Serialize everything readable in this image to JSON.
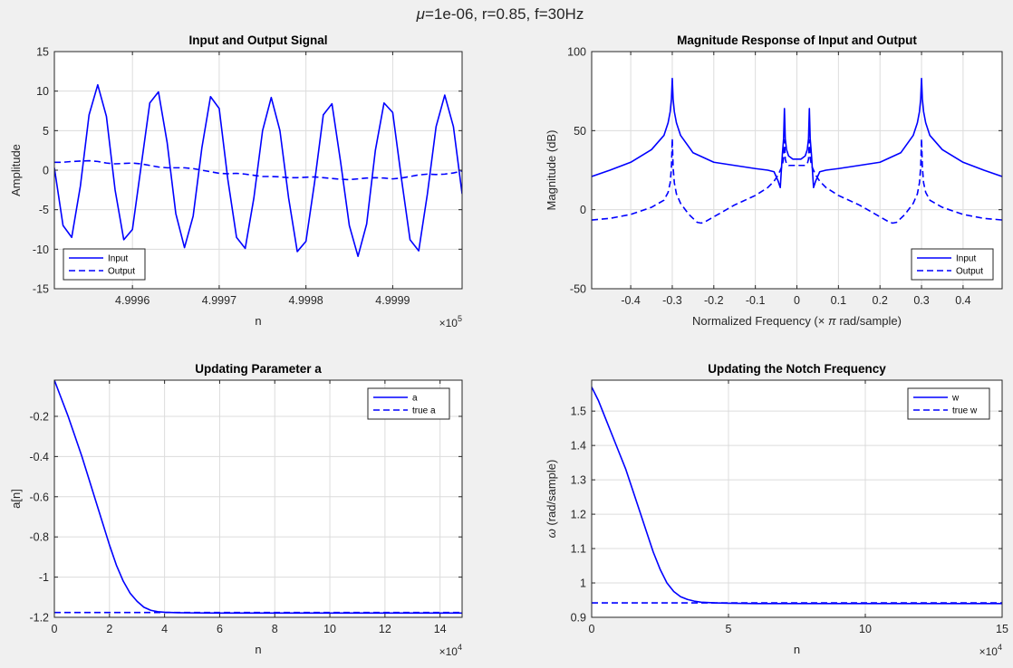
{
  "figure": {
    "title": "μ=1e-06, r=0.85, f=30Hz",
    "title_parts": {
      "mu": "μ",
      "rest": "=1e-06, r=0.85, f=30Hz"
    },
    "line_color": "#0000ff"
  },
  "chart_data": [
    {
      "type": "line",
      "title": "Input and Output Signal",
      "xlabel": "n",
      "ylabel": "Amplitude",
      "x_multiplier": "×10^5",
      "x_multiplier_parts": {
        "times": "×",
        "base": "10",
        "exp": "5"
      },
      "xlim": [
        4.99951,
        4.99998
      ],
      "ylim": [
        -15,
        15
      ],
      "xticks": [
        4.9996,
        4.9997,
        4.9998,
        4.9999
      ],
      "xtick_labels": [
        "4.9996",
        "4.9997",
        "4.9998",
        "4.9999"
      ],
      "yticks": [
        -15,
        -10,
        -5,
        0,
        5,
        10,
        15
      ],
      "ytick_labels": [
        "-15",
        "-10",
        "-5",
        "0",
        "5",
        "10",
        "15"
      ],
      "grid": true,
      "legend_position": "bottom-left",
      "legend": [
        "Input",
        "Output"
      ],
      "series": [
        {
          "name": "Input",
          "style": "solid",
          "x": [
            4.99951,
            4.99952,
            4.99953,
            4.99954,
            4.99955,
            4.99956,
            4.99957,
            4.99958,
            4.99959,
            4.9996,
            4.99961,
            4.99962,
            4.99963,
            4.99964,
            4.99965,
            4.99966,
            4.99967,
            4.99968,
            4.99969,
            4.9997,
            4.99971,
            4.99972,
            4.99973,
            4.99974,
            4.99975,
            4.99976,
            4.99977,
            4.99978,
            4.99979,
            4.9998,
            4.99981,
            4.99982,
            4.99983,
            4.99984,
            4.99985,
            4.99986,
            4.99987,
            4.99988,
            4.99989,
            4.9999,
            4.99991,
            4.99992,
            4.99993,
            4.99994,
            4.99995,
            4.99996,
            4.99997,
            4.99998
          ],
          "y": [
            0.3,
            -7.0,
            -8.5,
            -2.0,
            7.0,
            10.8,
            6.8,
            -2.5,
            -8.8,
            -7.5,
            0.5,
            8.5,
            9.9,
            3.5,
            -5.5,
            -9.8,
            -5.8,
            2.8,
            9.3,
            7.8,
            -1.2,
            -8.5,
            -9.9,
            -3.5,
            5.0,
            9.2,
            5.0,
            -3.5,
            -10.3,
            -9.0,
            -1.5,
            7.0,
            8.4,
            1.0,
            -7.0,
            -10.9,
            -6.8,
            2.5,
            8.5,
            7.3,
            -1.0,
            -8.8,
            -10.2,
            -3.0,
            5.5,
            9.5,
            5.5,
            -3.0
          ]
        },
        {
          "name": "Output",
          "style": "dashed",
          "x": [
            4.99951,
            4.99952,
            4.99953,
            4.99954,
            4.99955,
            4.99956,
            4.99957,
            4.99958,
            4.99959,
            4.9996,
            4.99961,
            4.99962,
            4.99963,
            4.99964,
            4.99965,
            4.99966,
            4.99967,
            4.99968,
            4.99969,
            4.9997,
            4.99971,
            4.99972,
            4.99973,
            4.99974,
            4.99975,
            4.99976,
            4.99977,
            4.99978,
            4.99979,
            4.9998,
            4.99981,
            4.99982,
            4.99983,
            4.99984,
            4.99985,
            4.99986,
            4.99987,
            4.99988,
            4.99989,
            4.9999,
            4.99991,
            4.99992,
            4.99993,
            4.99994,
            4.99995,
            4.99996,
            4.99997,
            4.99998
          ],
          "y": [
            1.0,
            1.0,
            1.1,
            1.15,
            1.2,
            1.1,
            0.9,
            0.8,
            0.85,
            0.9,
            0.8,
            0.6,
            0.4,
            0.3,
            0.3,
            0.3,
            0.2,
            0.0,
            -0.2,
            -0.4,
            -0.45,
            -0.4,
            -0.5,
            -0.65,
            -0.8,
            -0.8,
            -0.85,
            -0.95,
            -0.95,
            -0.9,
            -0.85,
            -0.95,
            -1.05,
            -1.15,
            -1.2,
            -1.1,
            -1.0,
            -0.95,
            -1.0,
            -1.1,
            -1.0,
            -0.8,
            -0.6,
            -0.5,
            -0.55,
            -0.5,
            -0.35,
            -0.1
          ]
        }
      ]
    },
    {
      "type": "line",
      "title": "Magnitude Response of Input and Output",
      "xlabel": "Normalized Frequency (× π rad/sample)",
      "xlabel_parts": {
        "before": "Normalized Frequency (",
        "times": "×",
        "pi": "π",
        "after": " rad/sample)"
      },
      "ylabel": "Magnitude (dB)",
      "xlim": [
        -0.494,
        0.494
      ],
      "ylim": [
        -50,
        100
      ],
      "xticks": [
        -0.4,
        -0.3,
        -0.2,
        -0.1,
        0,
        0.1,
        0.2,
        0.3,
        0.4
      ],
      "xtick_labels": [
        "-0.4",
        "-0.3",
        "-0.2",
        "-0.1",
        "0",
        "0.1",
        "0.2",
        "0.3",
        "0.4"
      ],
      "yticks": [
        -50,
        0,
        50,
        100
      ],
      "ytick_labels": [
        "-50",
        "0",
        "50",
        "100"
      ],
      "grid": true,
      "legend_position": "bottom-right",
      "legend": [
        "Input",
        "Output"
      ],
      "series": [
        {
          "name": "Input",
          "style": "solid",
          "x": [
            -0.494,
            -0.45,
            -0.4,
            -0.35,
            -0.32,
            -0.31,
            -0.305,
            -0.302,
            -0.3,
            -0.298,
            -0.295,
            -0.29,
            -0.28,
            -0.25,
            -0.2,
            -0.15,
            -0.1,
            -0.07,
            -0.055,
            -0.045,
            -0.04,
            -0.035,
            -0.032,
            -0.03,
            -0.028,
            -0.025,
            -0.02,
            -0.01,
            0,
            0.01,
            0.02,
            0.025,
            0.028,
            0.03,
            0.032,
            0.035,
            0.04,
            0.045,
            0.055,
            0.07,
            0.1,
            0.15,
            0.2,
            0.25,
            0.28,
            0.29,
            0.295,
            0.298,
            0.3,
            0.302,
            0.305,
            0.31,
            0.32,
            0.35,
            0.4,
            0.45,
            0.494
          ],
          "y": [
            21,
            25,
            30,
            38,
            47,
            55,
            62,
            70,
            83,
            70,
            62,
            55,
            47,
            36,
            30,
            28,
            26,
            25,
            24,
            18,
            14,
            35,
            45,
            64,
            45,
            38,
            34,
            32,
            32,
            32,
            34,
            38,
            45,
            64,
            45,
            35,
            14,
            18,
            24,
            25,
            26,
            28,
            30,
            36,
            47,
            55,
            62,
            70,
            83,
            70,
            62,
            55,
            47,
            38,
            30,
            25,
            21
          ]
        },
        {
          "name": "Output",
          "style": "dashed",
          "x": [
            -0.494,
            -0.45,
            -0.4,
            -0.35,
            -0.32,
            -0.31,
            -0.305,
            -0.302,
            -0.3,
            -0.298,
            -0.295,
            -0.29,
            -0.28,
            -0.26,
            -0.24,
            -0.23,
            -0.22,
            -0.2,
            -0.15,
            -0.1,
            -0.07,
            -0.055,
            -0.045,
            -0.04,
            -0.035,
            -0.032,
            -0.03,
            -0.028,
            -0.025,
            -0.02,
            -0.01,
            0,
            0.01,
            0.02,
            0.025,
            0.028,
            0.03,
            0.032,
            0.035,
            0.04,
            0.045,
            0.055,
            0.07,
            0.1,
            0.15,
            0.2,
            0.22,
            0.23,
            0.24,
            0.26,
            0.28,
            0.29,
            0.295,
            0.298,
            0.3,
            0.302,
            0.305,
            0.31,
            0.32,
            0.35,
            0.4,
            0.45,
            0.494
          ],
          "y": [
            -6.5,
            -5.5,
            -3,
            1.5,
            6,
            11,
            17,
            27,
            45,
            27,
            17,
            10,
            4,
            -3,
            -8,
            -8.5,
            -7.5,
            -4.5,
            3,
            9,
            14,
            18,
            22,
            25,
            28,
            33,
            44,
            32,
            29,
            28,
            28,
            28,
            28,
            28,
            29,
            32,
            44,
            33,
            28,
            25,
            22,
            18,
            14,
            9,
            3,
            -4.5,
            -7.5,
            -8.5,
            -8,
            -3,
            4,
            10,
            17,
            27,
            45,
            27,
            17,
            11,
            6,
            1.5,
            -3,
            -5.5,
            -6.5
          ]
        }
      ]
    },
    {
      "type": "line",
      "title": "Updating Parameter a",
      "xlabel": "n",
      "ylabel": "a[n]",
      "x_multiplier": "×10^4",
      "x_multiplier_parts": {
        "times": "×",
        "base": "10",
        "exp": "4"
      },
      "xlim": [
        0,
        14.8
      ],
      "ylim": [
        -1.2,
        -0.02
      ],
      "xticks": [
        0,
        2,
        4,
        6,
        8,
        10,
        12,
        14
      ],
      "xtick_labels": [
        "0",
        "2",
        "4",
        "6",
        "8",
        "10",
        "12",
        "14"
      ],
      "yticks": [
        -1.2,
        -1.0,
        -0.8,
        -0.6,
        -0.4,
        -0.2
      ],
      "ytick_labels": [
        "-1.2",
        "-1",
        "-0.8",
        "-0.6",
        "-0.4",
        "-0.2"
      ],
      "grid": true,
      "legend_position": "top-right",
      "legend": [
        "a",
        "true a"
      ],
      "series": [
        {
          "name": "a",
          "style": "solid",
          "x": [
            0,
            0.25,
            0.5,
            0.75,
            1.0,
            1.25,
            1.5,
            1.75,
            2.0,
            2.25,
            2.5,
            2.75,
            3.0,
            3.25,
            3.5,
            3.75,
            4.0,
            4.5,
            5.0,
            6.0,
            8.0,
            10.0,
            12.0,
            14.8
          ],
          "y": [
            -0.02,
            -0.11,
            -0.2,
            -0.3,
            -0.4,
            -0.51,
            -0.62,
            -0.73,
            -0.84,
            -0.94,
            -1.02,
            -1.08,
            -1.12,
            -1.15,
            -1.165,
            -1.172,
            -1.175,
            -1.177,
            -1.178,
            -1.179,
            -1.179,
            -1.179,
            -1.179,
            -1.179
          ]
        },
        {
          "name": "true a",
          "style": "dashed",
          "x": [
            0,
            14.8
          ],
          "y": [
            -1.176,
            -1.176
          ]
        }
      ]
    },
    {
      "type": "line",
      "title": "Updating the Notch Frequency",
      "xlabel": "n",
      "ylabel": "ω (rad/sample)",
      "ylabel_parts": {
        "omega": "ω",
        "rest": " (rad/sample)"
      },
      "x_multiplier": "×10^4",
      "x_multiplier_parts": {
        "times": "×",
        "base": "10",
        "exp": "4"
      },
      "xlim": [
        0,
        15
      ],
      "ylim": [
        0.9,
        1.59
      ],
      "xticks": [
        0,
        5,
        10,
        15
      ],
      "xtick_labels": [
        "0",
        "5",
        "10",
        "15"
      ],
      "yticks": [
        0.9,
        1.0,
        1.1,
        1.2,
        1.3,
        1.4,
        1.5
      ],
      "ytick_labels": [
        "0.9",
        "1",
        "1.1",
        "1.2",
        "1.3",
        "1.4",
        "1.5"
      ],
      "grid": true,
      "legend_position": "top-right",
      "legend": [
        "w",
        "true w"
      ],
      "series": [
        {
          "name": "w",
          "style": "solid",
          "x": [
            0,
            0.25,
            0.5,
            0.75,
            1.0,
            1.25,
            1.5,
            1.75,
            2.0,
            2.25,
            2.5,
            2.75,
            3.0,
            3.25,
            3.5,
            3.75,
            4.0,
            4.5,
            5.0,
            6.0,
            8.0,
            10.0,
            12.0,
            15.0
          ],
          "y": [
            1.57,
            1.53,
            1.48,
            1.43,
            1.38,
            1.33,
            1.27,
            1.21,
            1.15,
            1.09,
            1.04,
            1.0,
            0.975,
            0.96,
            0.952,
            0.947,
            0.944,
            0.942,
            0.941,
            0.94,
            0.94,
            0.94,
            0.94,
            0.94
          ]
        },
        {
          "name": "true w",
          "style": "dashed",
          "x": [
            0,
            15
          ],
          "y": [
            0.942,
            0.942
          ]
        }
      ]
    }
  ]
}
